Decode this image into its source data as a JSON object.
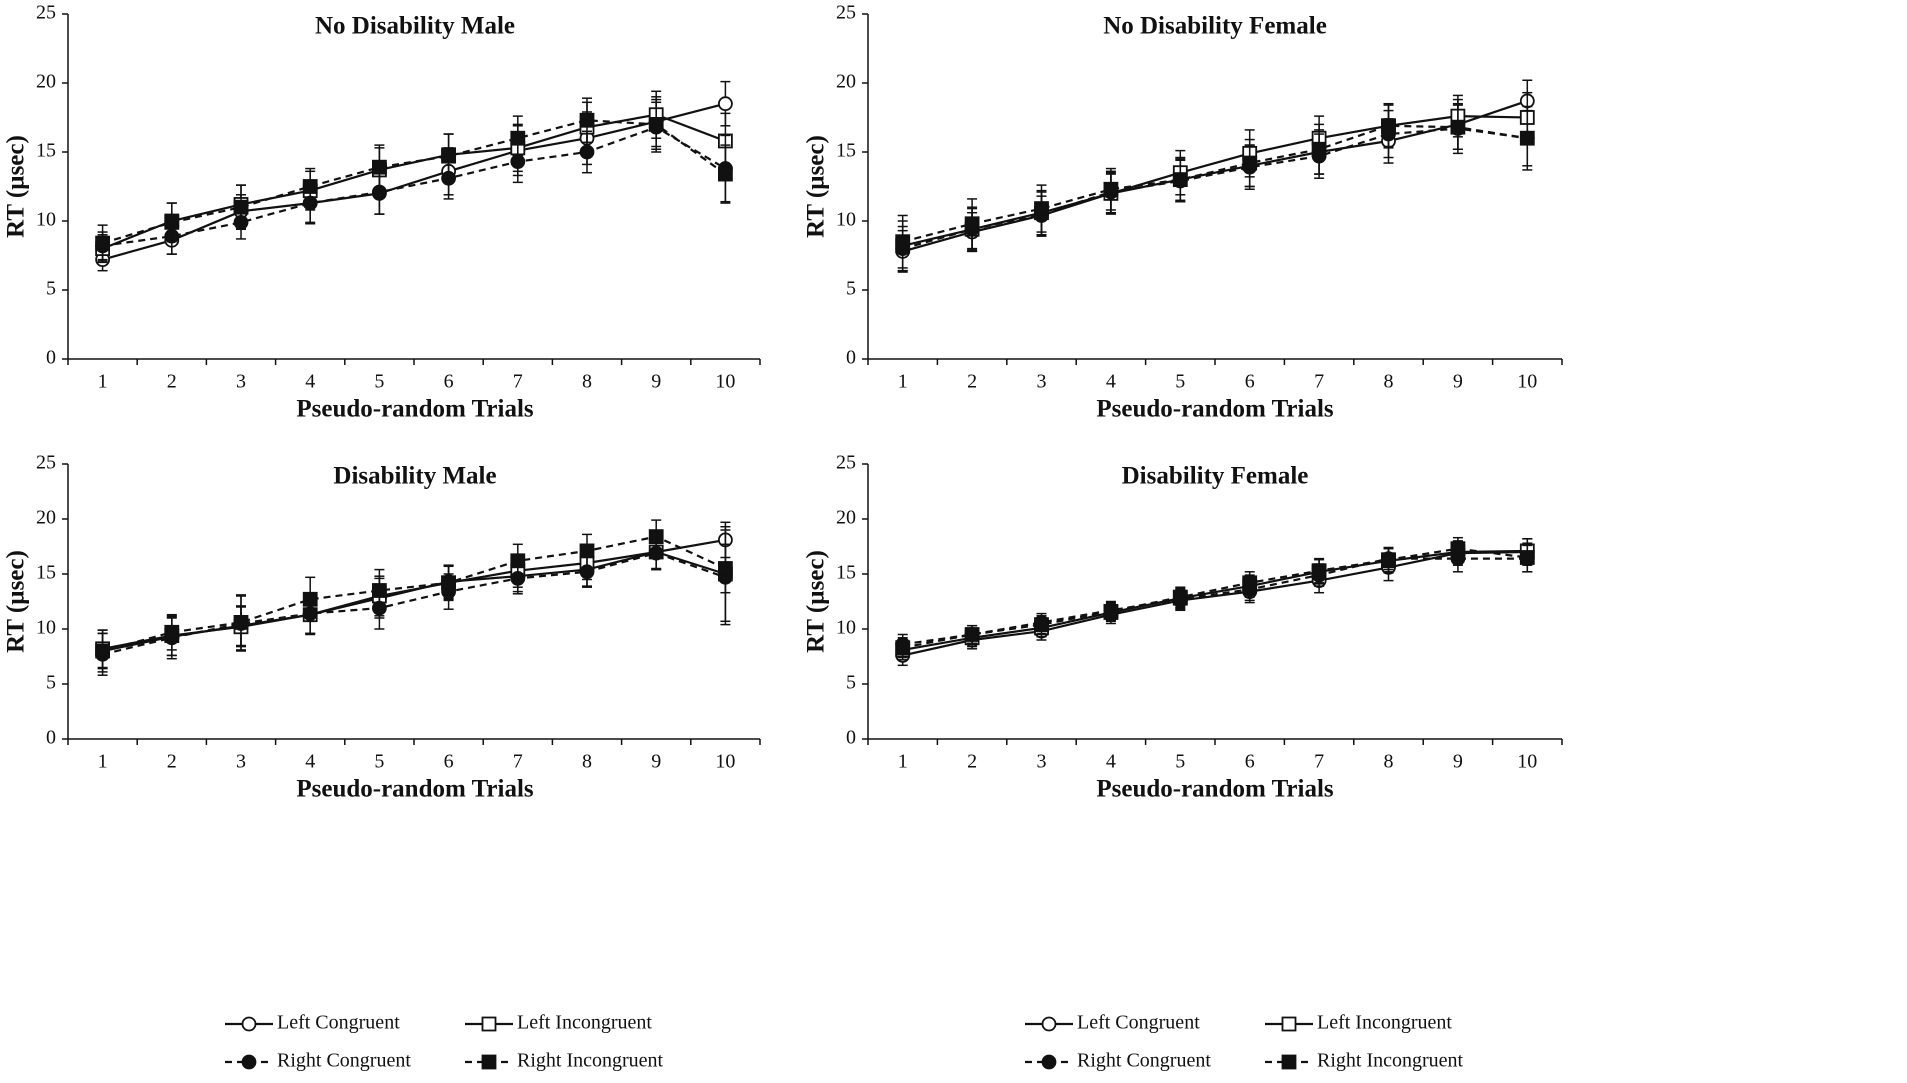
{
  "chart_data": [
    {
      "type": "line",
      "title": "No Disability Male",
      "xlabel": "Pseudo-random Trials",
      "ylabel": "RT (µsec)",
      "x": [
        1,
        2,
        3,
        4,
        5,
        6,
        7,
        8,
        9,
        10
      ],
      "ylim": [
        0,
        25
      ],
      "yticks": [
        0,
        5,
        10,
        15,
        20,
        25
      ],
      "series": [
        {
          "name": "Left Congruent",
          "values": [
            7.2,
            8.6,
            10.7,
            11.3,
            12.0,
            13.6,
            15.1,
            16.0,
            17.2,
            18.5
          ],
          "error": [
            0.8,
            1.0,
            1.2,
            1.5,
            1.5,
            1.7,
            1.8,
            1.9,
            1.8,
            1.6
          ]
        },
        {
          "name": "Left Incongruent",
          "values": [
            8.0,
            10.0,
            11.2,
            12.2,
            13.7,
            14.8,
            15.3,
            16.8,
            17.7,
            15.8
          ],
          "error": [
            1.0,
            1.3,
            1.4,
            1.4,
            1.6,
            1.5,
            1.7,
            1.8,
            1.7,
            2.0
          ]
        },
        {
          "name": "Right Congruent",
          "values": [
            8.2,
            8.9,
            9.9,
            11.3,
            12.1,
            13.1,
            14.3,
            15.0,
            16.8,
            13.8
          ],
          "error": [
            1.0,
            1.3,
            1.2,
            1.4,
            1.6,
            1.5,
            1.5,
            1.5,
            1.8,
            2.4
          ]
        },
        {
          "name": "Right Incongruent",
          "values": [
            8.4,
            9.9,
            11.0,
            12.5,
            13.9,
            14.7,
            16.0,
            17.3,
            17.0,
            13.4
          ],
          "error": [
            1.3,
            1.4,
            1.6,
            1.3,
            1.6,
            1.6,
            1.6,
            1.6,
            1.8,
            2.1
          ]
        }
      ]
    },
    {
      "type": "line",
      "title": "No Disability Female",
      "xlabel": "Pseudo-random Trials",
      "ylabel": "RT (µsec)",
      "x": [
        1,
        2,
        3,
        4,
        5,
        6,
        7,
        8,
        9,
        10
      ],
      "ylim": [
        0,
        25
      ],
      "yticks": [
        0,
        5,
        10,
        15,
        20,
        25
      ],
      "series": [
        {
          "name": "Left Congruent",
          "values": [
            7.8,
            9.2,
            10.4,
            12.0,
            13.0,
            14.0,
            15.0,
            15.8,
            17.0,
            18.7
          ],
          "error": [
            1.5,
            1.4,
            1.4,
            1.5,
            1.5,
            1.5,
            1.6,
            1.6,
            1.8,
            1.5
          ]
        },
        {
          "name": "Left Incongruent",
          "values": [
            8.2,
            9.4,
            10.6,
            12.0,
            13.5,
            14.9,
            16.0,
            16.9,
            17.6,
            17.5
          ],
          "error": [
            1.8,
            1.6,
            1.6,
            1.4,
            1.6,
            1.7,
            1.6,
            1.5,
            1.5,
            1.8
          ]
        },
        {
          "name": "Right Congruent",
          "values": [
            8.0,
            9.4,
            10.5,
            12.1,
            12.9,
            13.9,
            14.7,
            16.3,
            16.7,
            16.0
          ],
          "error": [
            1.6,
            1.5,
            1.6,
            1.5,
            1.5,
            1.6,
            1.6,
            1.7,
            1.8,
            2.0
          ]
        },
        {
          "name": "Right Incongruent",
          "values": [
            8.5,
            9.8,
            10.9,
            12.3,
            13.0,
            14.2,
            15.2,
            16.9,
            16.8,
            16.0
          ],
          "error": [
            1.9,
            1.8,
            1.7,
            1.5,
            1.6,
            1.7,
            1.8,
            1.6,
            1.6,
            2.3
          ]
        }
      ]
    },
    {
      "type": "line",
      "title": "Disability Male",
      "xlabel": "Pseudo-random Trials",
      "ylabel": "RT (µsec)",
      "x": [
        1,
        2,
        3,
        4,
        5,
        6,
        7,
        8,
        9,
        10
      ],
      "ylim": [
        0,
        25
      ],
      "yticks": [
        0,
        5,
        10,
        15,
        20,
        25
      ],
      "series": [
        {
          "name": "Left Congruent",
          "values": [
            8.0,
            9.3,
            10.3,
            11.3,
            12.8,
            14.3,
            14.8,
            15.4,
            17.0,
            18.1
          ],
          "error": [
            1.6,
            1.7,
            1.8,
            1.7,
            1.8,
            1.5,
            1.4,
            1.5,
            1.5,
            1.6
          ]
        },
        {
          "name": "Left Incongruent",
          "values": [
            8.2,
            9.4,
            10.2,
            11.3,
            13.0,
            14.2,
            15.3,
            16.0,
            17.0,
            15.0
          ],
          "error": [
            1.7,
            1.8,
            1.8,
            1.8,
            1.8,
            1.5,
            1.5,
            1.5,
            1.6,
            4.3
          ]
        },
        {
          "name": "Right Congruent",
          "values": [
            7.7,
            9.2,
            10.5,
            11.4,
            11.9,
            13.4,
            14.6,
            15.2,
            16.9,
            14.7
          ],
          "error": [
            1.9,
            1.9,
            2.5,
            1.8,
            1.9,
            1.6,
            1.4,
            1.4,
            1.5,
            4.3
          ]
        },
        {
          "name": "Right Incongruent",
          "values": [
            8.0,
            9.7,
            10.6,
            12.7,
            13.5,
            14.2,
            16.2,
            17.1,
            18.4,
            15.5
          ],
          "error": [
            1.9,
            1.6,
            2.5,
            2.0,
            1.9,
            1.6,
            1.5,
            1.5,
            1.5,
            2.2
          ]
        }
      ]
    },
    {
      "type": "line",
      "title": "Disability Female",
      "xlabel": "Pseudo-random Trials",
      "ylabel": "RT (µsec)",
      "x": [
        1,
        2,
        3,
        4,
        5,
        6,
        7,
        8,
        9,
        10
      ],
      "ylim": [
        0,
        25
      ],
      "yticks": [
        0,
        5,
        10,
        15,
        20,
        25
      ],
      "series": [
        {
          "name": "Left Congruent",
          "values": [
            7.6,
            9.0,
            9.8,
            11.3,
            12.6,
            13.4,
            14.4,
            15.6,
            16.9,
            17.0
          ],
          "error": [
            0.9,
            0.8,
            0.8,
            0.8,
            0.9,
            1.0,
            1.1,
            1.2,
            1.1,
            1.2
          ]
        },
        {
          "name": "Left Incongruent",
          "values": [
            8.1,
            9.2,
            10.1,
            11.5,
            12.8,
            13.9,
            15.2,
            16.2,
            17.0,
            17.1
          ],
          "error": [
            0.9,
            0.8,
            0.8,
            0.8,
            0.9,
            1.0,
            1.1,
            1.1,
            1.0,
            1.1
          ]
        },
        {
          "name": "Right Congruent",
          "values": [
            8.6,
            9.5,
            10.6,
            11.7,
            12.7,
            13.6,
            14.9,
            16.4,
            16.4,
            16.4
          ],
          "error": [
            0.9,
            0.8,
            0.8,
            0.8,
            0.9,
            1.0,
            1.0,
            1.0,
            1.2,
            1.2
          ]
        },
        {
          "name": "Right Incongruent",
          "values": [
            8.3,
            9.5,
            10.4,
            11.6,
            12.9,
            14.2,
            15.3,
            16.3,
            17.3,
            16.5
          ],
          "error": [
            0.9,
            0.8,
            0.8,
            0.8,
            0.9,
            1.0,
            1.1,
            1.1,
            1.0,
            1.3
          ]
        }
      ]
    }
  ],
  "legends": [
    {
      "items": [
        "Left Congruent",
        "Left Incongruent",
        "Right Congruent",
        "Right Incongruent"
      ]
    },
    {
      "items": [
        "Left Congruent",
        "Left Incongruent",
        "Right Congruent",
        "Right Incongruent"
      ]
    }
  ],
  "colors": {
    "ink": "#111111",
    "background": "#ffffff"
  }
}
